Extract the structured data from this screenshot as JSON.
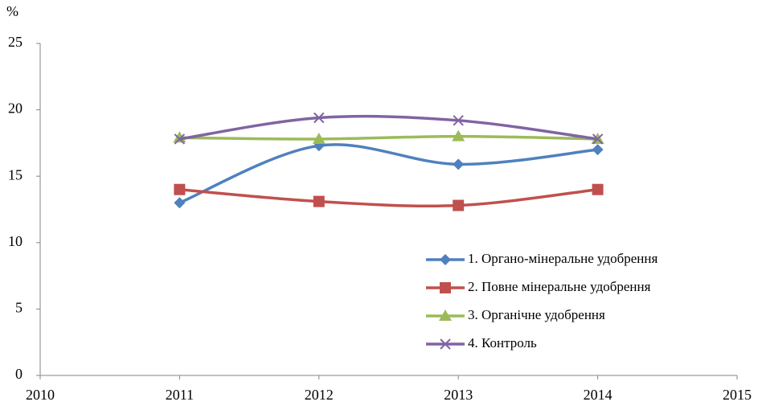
{
  "chart_data": {
    "type": "line",
    "y_label": "%",
    "x": [
      2011,
      2012,
      2013,
      2014
    ],
    "xlim": [
      2010,
      2015
    ],
    "xticks": [
      2010,
      2011,
      2012,
      2013,
      2014,
      2015
    ],
    "ylim": [
      0,
      25
    ],
    "yticks": [
      0,
      5,
      10,
      15,
      20,
      25
    ],
    "grid": false,
    "smooth": true,
    "legend": "right",
    "series": [
      {
        "name": "1. Органо-мінеральне удобрення",
        "color": "#4f81bd",
        "marker": "diamond",
        "values": [
          13,
          17.3,
          15.9,
          17.0
        ]
      },
      {
        "name": "2. Повне мінеральне удобрення",
        "color": "#c0504d",
        "marker": "square",
        "values": [
          14,
          13.1,
          12.8,
          14
        ]
      },
      {
        "name": "3. Органічне удобрення",
        "color": "#9bbb59",
        "marker": "triangle",
        "values": [
          17.9,
          17.8,
          18.0,
          17.8
        ]
      },
      {
        "name": "4. Контроль",
        "color": "#8064a2",
        "marker": "x",
        "values": [
          17.8,
          19.4,
          19.2,
          17.8
        ]
      }
    ]
  }
}
